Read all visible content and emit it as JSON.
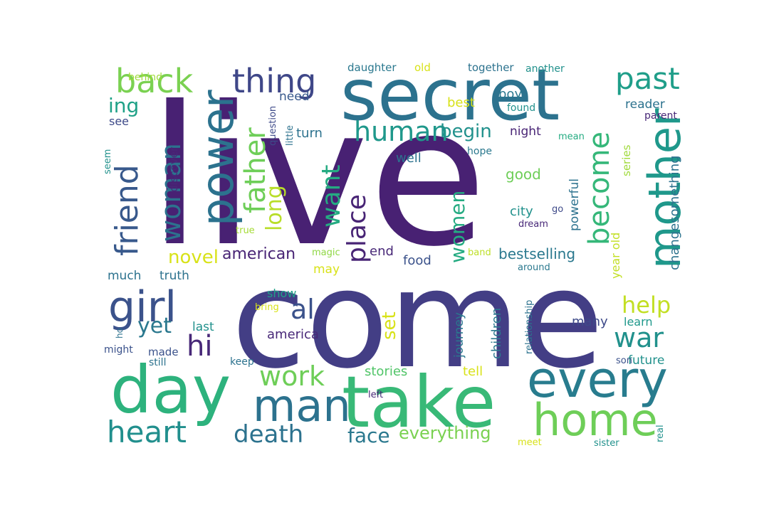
{
  "words": [
    {
      "text": "live",
      "color": "#482173",
      "rotate": false
    },
    {
      "text": "come",
      "color": "#433e85",
      "rotate": false
    },
    {
      "text": "secret",
      "color": "#2c728e",
      "rotate": false
    },
    {
      "text": "take",
      "color": "#38b977",
      "rotate": false
    },
    {
      "text": "day",
      "color": "#2db27d",
      "rotate": false
    },
    {
      "text": "every",
      "color": "#287c8e",
      "rotate": false
    },
    {
      "text": "home",
      "color": "#6ece58",
      "rotate": false
    },
    {
      "text": "man",
      "color": "#2c728e",
      "rotate": false
    },
    {
      "text": "mother",
      "color": "#1f988b",
      "rotate": true
    },
    {
      "text": "power",
      "color": "#2c728e",
      "rotate": true
    },
    {
      "text": "thing",
      "color": "#3f4788",
      "rotate": false
    },
    {
      "text": "back",
      "color": "#7ad151",
      "rotate": false
    },
    {
      "text": "girl",
      "color": "#3b528b",
      "rotate": false
    },
    {
      "text": "heart",
      "color": "#218f8d",
      "rotate": false
    },
    {
      "text": "past",
      "color": "#1f9e89",
      "rotate": false
    },
    {
      "text": "friend",
      "color": "#38598c",
      "rotate": true
    },
    {
      "text": "woman",
      "color": "#2c728e",
      "rotate": true
    },
    {
      "text": "father",
      "color": "#6ece58",
      "rotate": true
    },
    {
      "text": "become",
      "color": "#35b779",
      "rotate": true
    },
    {
      "text": "human",
      "color": "#1f988b",
      "rotate": false
    },
    {
      "text": "war",
      "color": "#21918c",
      "rotate": false
    },
    {
      "text": "work",
      "color": "#6ece58",
      "rotate": false
    },
    {
      "text": "death",
      "color": "#2c728e",
      "rotate": false
    },
    {
      "text": "place",
      "color": "#482475",
      "rotate": true
    },
    {
      "text": "want",
      "color": "#25ab82",
      "rotate": true
    },
    {
      "text": "ing",
      "color": "#1fa187",
      "rotate": false
    },
    {
      "text": "long",
      "color": "#b8de29",
      "rotate": true
    },
    {
      "text": "women",
      "color": "#25ab82",
      "rotate": true
    },
    {
      "text": "al",
      "color": "#3b528b",
      "rotate": false
    },
    {
      "text": "hi",
      "color": "#482878",
      "rotate": false
    },
    {
      "text": "yet",
      "color": "#2a788e",
      "rotate": false
    },
    {
      "text": "help",
      "color": "#c2df23",
      "rotate": false
    },
    {
      "text": "face",
      "color": "#2a788e",
      "rotate": false
    },
    {
      "text": "begin",
      "color": "#21918c",
      "rotate": false
    },
    {
      "text": "novel",
      "color": "#d8e219",
      "rotate": false
    },
    {
      "text": "everything",
      "color": "#7ad151",
      "rotate": false
    },
    {
      "text": "american",
      "color": "#482475",
      "rotate": false
    },
    {
      "text": "set",
      "color": "#d8e219",
      "rotate": true
    },
    {
      "text": "bestselling",
      "color": "#2a788e",
      "rotate": false
    },
    {
      "text": "changesomething",
      "color": "#2c728e",
      "rotate": true
    },
    {
      "text": "stories",
      "color": "#52c569",
      "rotate": false
    },
    {
      "text": "america",
      "color": "#482878",
      "rotate": false
    },
    {
      "text": "children",
      "color": "#2a788e",
      "rotate": true
    },
    {
      "text": "future",
      "color": "#21918c",
      "rotate": false
    },
    {
      "text": "journey",
      "color": "#2a788e",
      "rotate": true
    },
    {
      "text": "good",
      "color": "#6ece58",
      "rotate": false
    },
    {
      "text": "city",
      "color": "#21918c",
      "rotate": false
    },
    {
      "text": "tell",
      "color": "#d8e219",
      "rotate": false
    },
    {
      "text": "many",
      "color": "#3e4a89",
      "rotate": false
    },
    {
      "text": "turn",
      "color": "#2c728e",
      "rotate": false
    },
    {
      "text": "well",
      "color": "#2c728e",
      "rotate": false
    },
    {
      "text": "night",
      "color": "#482475",
      "rotate": false
    },
    {
      "text": "boy",
      "color": "#2a788e",
      "rotate": false
    },
    {
      "text": "best",
      "color": "#d8e219",
      "rotate": false
    },
    {
      "text": "reader",
      "color": "#2c728e",
      "rotate": false
    },
    {
      "text": "much",
      "color": "#2c728e",
      "rotate": false
    },
    {
      "text": "truth",
      "color": "#2c728e",
      "rotate": false
    },
    {
      "text": "show",
      "color": "#1fa187",
      "rotate": false
    },
    {
      "text": "food",
      "color": "#3b528b",
      "rotate": false
    },
    {
      "text": "end",
      "color": "#482878",
      "rotate": false
    },
    {
      "text": "may",
      "color": "#d8e219",
      "rotate": false
    },
    {
      "text": "last",
      "color": "#21918c",
      "rotate": false
    },
    {
      "text": "learn",
      "color": "#1f988b",
      "rotate": false
    },
    {
      "text": "need",
      "color": "#38598c",
      "rotate": false
    },
    {
      "text": "see",
      "color": "#3e4a89",
      "rotate": false
    },
    {
      "text": "powerful",
      "color": "#2c728e",
      "rotate": true
    },
    {
      "text": "year old",
      "color": "#c2df23",
      "rotate": true
    },
    {
      "text": "series",
      "color": "#9fda3a",
      "rotate": true
    },
    {
      "text": "discover",
      "color": "#482878",
      "rotate": true
    },
    {
      "text": "made",
      "color": "#3b528b",
      "rotate": false
    },
    {
      "text": "might",
      "color": "#3b528b",
      "rotate": false
    },
    {
      "text": "still",
      "color": "#2c728e",
      "rotate": false
    },
    {
      "text": "keep",
      "color": "#2c728e",
      "rotate": false
    },
    {
      "text": "daughter",
      "color": "#2a788e",
      "rotate": false
    },
    {
      "text": "old",
      "color": "#d8e219",
      "rotate": false
    },
    {
      "text": "together",
      "color": "#2c728e",
      "rotate": false
    },
    {
      "text": "another",
      "color": "#21918c",
      "rotate": false
    },
    {
      "text": "behind",
      "color": "#9fda3a",
      "rotate": false
    },
    {
      "text": "found",
      "color": "#21918c",
      "rotate": false
    },
    {
      "text": "parent",
      "color": "#482878",
      "rotate": false
    },
    {
      "text": "mean",
      "color": "#25ab82",
      "rotate": false
    },
    {
      "text": "hope",
      "color": "#2a788e",
      "rotate": false
    },
    {
      "text": "question",
      "color": "#3e4a89",
      "rotate": true
    },
    {
      "text": "little",
      "color": "#2c728e",
      "rotate": true
    },
    {
      "text": "seem",
      "color": "#21918c",
      "rotate": true
    },
    {
      "text": "go",
      "color": "#3e4a89",
      "rotate": false
    },
    {
      "text": "dream",
      "color": "#482878",
      "rotate": false
    },
    {
      "text": "true",
      "color": "#a5db36",
      "rotate": false
    },
    {
      "text": "magic",
      "color": "#8fd744",
      "rotate": false
    },
    {
      "text": "band",
      "color": "#bddf26",
      "rotate": false
    },
    {
      "text": "around",
      "color": "#2a788e",
      "rotate": false
    },
    {
      "text": "relationship",
      "color": "#2c728e",
      "rotate": true
    },
    {
      "text": "bring",
      "color": "#d8e219",
      "rotate": false
    },
    {
      "text": "ho",
      "color": "#2c728e",
      "rotate": true
    },
    {
      "text": "son",
      "color": "#3b528b",
      "rotate": false
    },
    {
      "text": "left",
      "color": "#482878",
      "rotate": false
    },
    {
      "text": "meet",
      "color": "#d8e219",
      "rotate": false
    },
    {
      "text": "sister",
      "color": "#21918c",
      "rotate": false
    },
    {
      "text": "real",
      "color": "#21918c",
      "rotate": true
    }
  ]
}
